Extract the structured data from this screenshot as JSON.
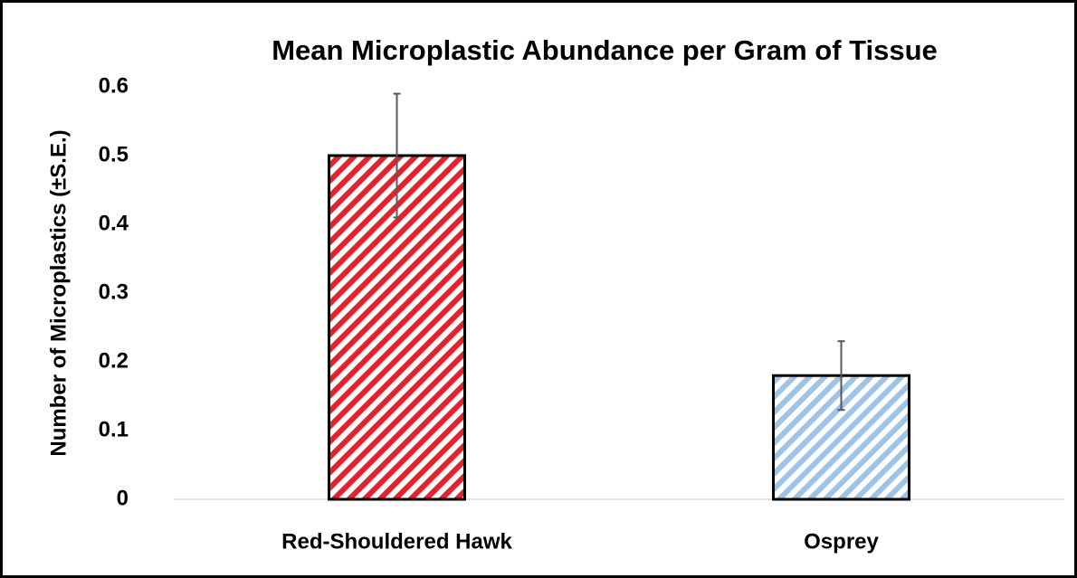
{
  "chart_data": {
    "type": "bar",
    "title": "Mean Microplastic Abundance per Gram of Tissue",
    "y_label": "Number of Microplastics (±S.E.)",
    "categories": [
      "Red-Shouldered Hawk",
      "Osprey"
    ],
    "values": [
      0.5,
      0.18
    ],
    "errors": [
      0.09,
      0.05
    ],
    "colors": [
      "#e8202a",
      "#9dc3e6"
    ],
    "ylim": [
      0,
      0.6
    ],
    "yticks": [
      0,
      0.1,
      0.2,
      0.3,
      0.4,
      0.5,
      0.6
    ],
    "grid": false
  }
}
